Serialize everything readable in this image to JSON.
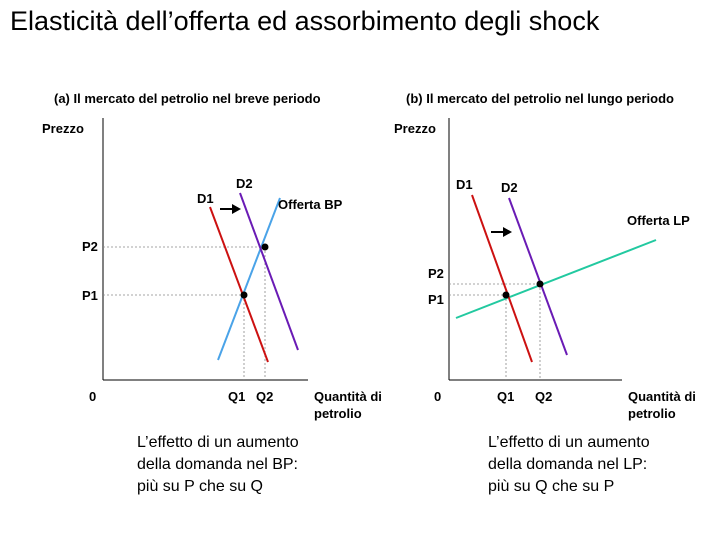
{
  "title": "Elasticità dell’offerta ed assorbimento degli shock",
  "panels": {
    "a": {
      "title": "(a) Il mercato del petrolio nel breve periodo",
      "y_label": "Prezzo",
      "x_label_line1": "Quantità di",
      "x_label_line2": "petrolio",
      "origin": "0",
      "p1": "P1",
      "p2": "P2",
      "q1": "Q1",
      "q2": "Q2",
      "d1": "D1",
      "d2": "D2",
      "supply": "Offerta BP",
      "caption": [
        "L’effetto di un aumento",
        "della domanda nel BP:",
        "più su P che su Q"
      ]
    },
    "b": {
      "title": "(b) Il mercato del petrolio nel lungo periodo",
      "y_label": "Prezzo",
      "x_label_line1": "Quantità di",
      "x_label_line2": "petrolio",
      "origin": "0",
      "p1": "P1",
      "p2": "P2",
      "q1": "Q1",
      "q2": "Q2",
      "d1": "D1",
      "d2": "D2",
      "supply": "Offerta LP",
      "caption": [
        "L’effetto di un aumento",
        "della domanda nel LP:",
        "più su Q che su P"
      ]
    }
  },
  "colors": {
    "demand1": "#cc1111",
    "demand2": "#6a1bb5",
    "supply_short": "#4aa3e8",
    "supply_long": "#22c9a0",
    "arrow": "#000000"
  }
}
